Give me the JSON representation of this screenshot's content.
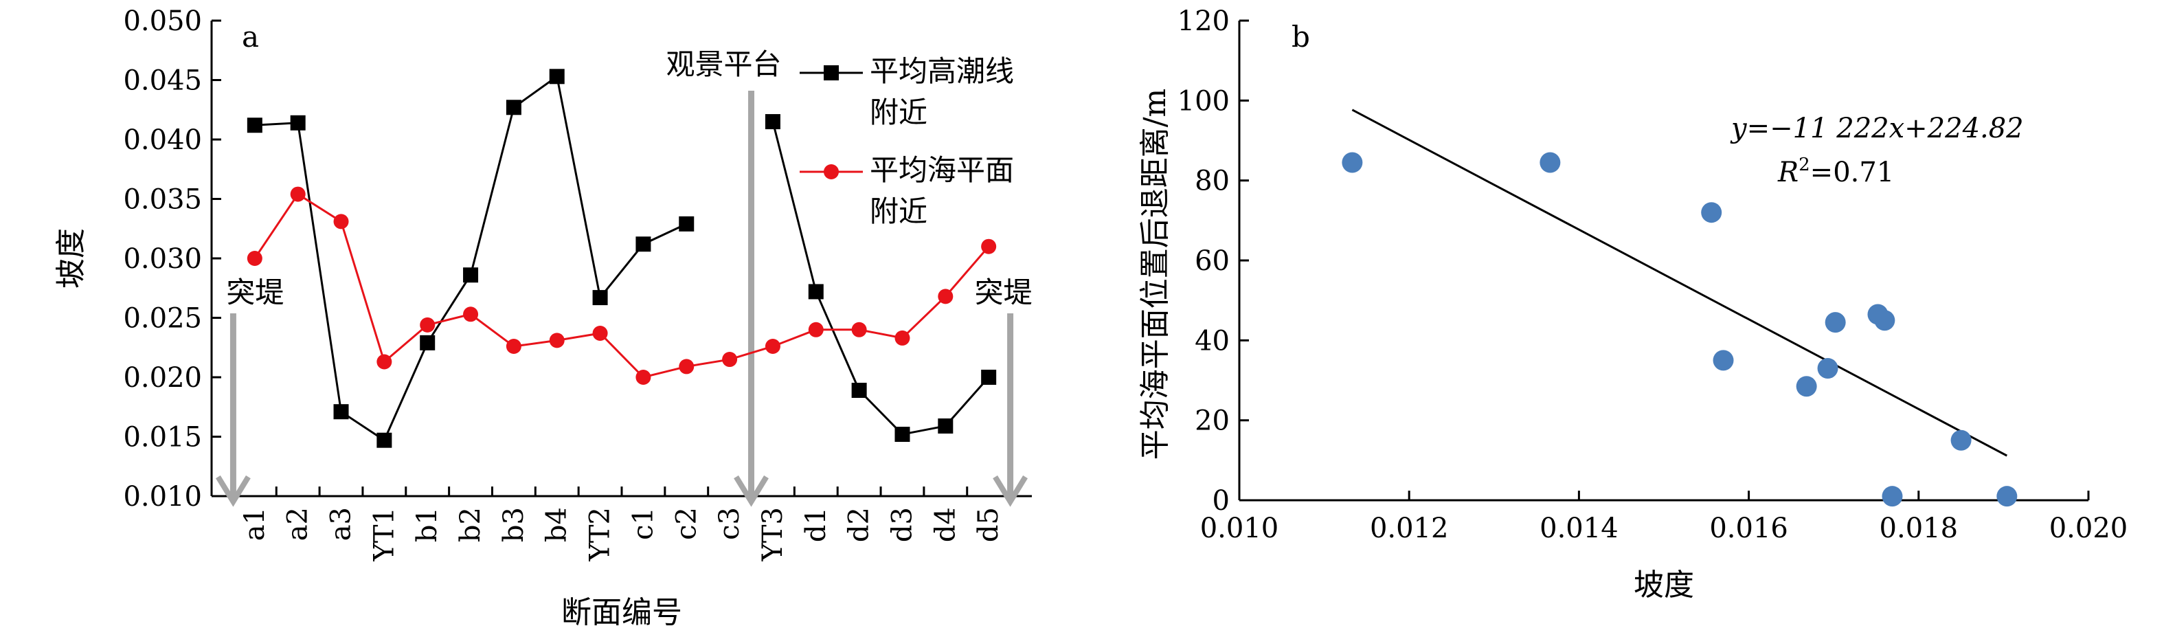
{
  "chart_data": [
    {
      "panel": "a",
      "type": "line",
      "categories": [
        "a1",
        "a2",
        "a3",
        "YT1",
        "b1",
        "b2",
        "b3",
        "b4",
        "YT2",
        "c1",
        "c2",
        "c3",
        "YT3",
        "d1",
        "d2",
        "d3",
        "d4",
        "d5"
      ],
      "xlabel": "断面编号",
      "ylabel": "坡度",
      "ylim": [
        0.01,
        0.05
      ],
      "yticks": [
        "0.010",
        "0.015",
        "0.020",
        "0.025",
        "0.030",
        "0.035",
        "0.040",
        "0.045",
        "0.050"
      ],
      "series": [
        {
          "name": "平均高潮线附近",
          "name_lines": [
            "平均高潮线",
            "附近"
          ],
          "color": "#000000",
          "marker": "square",
          "values": [
            0.0412,
            0.0414,
            0.0171,
            0.0147,
            0.0229,
            0.0286,
            0.0427,
            0.0453,
            0.0267,
            0.0312,
            0.0329,
            null,
            0.0415,
            0.0272,
            0.0189,
            0.0152,
            0.0159,
            0.02
          ]
        },
        {
          "name": "平均海平面附近",
          "name_lines": [
            "平均海平面",
            "附近"
          ],
          "color": "#e8131a",
          "marker": "circle",
          "values": [
            0.03,
            0.0354,
            0.0331,
            0.0213,
            0.0244,
            0.0253,
            0.0226,
            0.0231,
            0.0237,
            0.02,
            0.0209,
            0.0215,
            0.0226,
            0.024,
            0.024,
            0.0233,
            0.0268,
            0.031
          ]
        }
      ],
      "annotations": [
        {
          "text": "突堤",
          "at_category_gap": "before-a1",
          "arrow_color": "#a6a6a6"
        },
        {
          "text": "观景平台",
          "at_category_gap": "c3-YT3",
          "arrow_color": "#a6a6a6"
        },
        {
          "text": "突堤",
          "at_category_gap": "after-d5",
          "arrow_color": "#a6a6a6"
        }
      ],
      "legend_placement": "top-right"
    },
    {
      "panel": "b",
      "type": "scatter",
      "xlabel": "坡度",
      "ylabel": "平均海平面位置后退距离/m",
      "xlim": [
        0.01,
        0.02
      ],
      "ylim": [
        0,
        120
      ],
      "xticks": [
        "0.010",
        "0.012",
        "0.014",
        "0.016",
        "0.018",
        "0.020"
      ],
      "yticks": [
        "0",
        "20",
        "40",
        "60",
        "80",
        "100",
        "120"
      ],
      "point_color": "#4a7ebb",
      "points": [
        {
          "x": 0.01133,
          "y": 84.5
        },
        {
          "x": 0.01366,
          "y": 84.5
        },
        {
          "x": 0.01556,
          "y": 72
        },
        {
          "x": 0.0157,
          "y": 35
        },
        {
          "x": 0.01668,
          "y": 28.5
        },
        {
          "x": 0.01693,
          "y": 33
        },
        {
          "x": 0.01702,
          "y": 44.5
        },
        {
          "x": 0.01752,
          "y": 46.5
        },
        {
          "x": 0.0176,
          "y": 45
        },
        {
          "x": 0.01769,
          "y": 1
        },
        {
          "x": 0.0185,
          "y": 15
        },
        {
          "x": 0.01904,
          "y": 1
        }
      ],
      "trendline": {
        "slope": -11222,
        "intercept": 224.82,
        "x_range": [
          0.01133,
          0.01904
        ],
        "equation_text": "y=−11 222x+224.82",
        "r2_label": "R",
        "r2_value_text": "=0.71"
      }
    }
  ]
}
